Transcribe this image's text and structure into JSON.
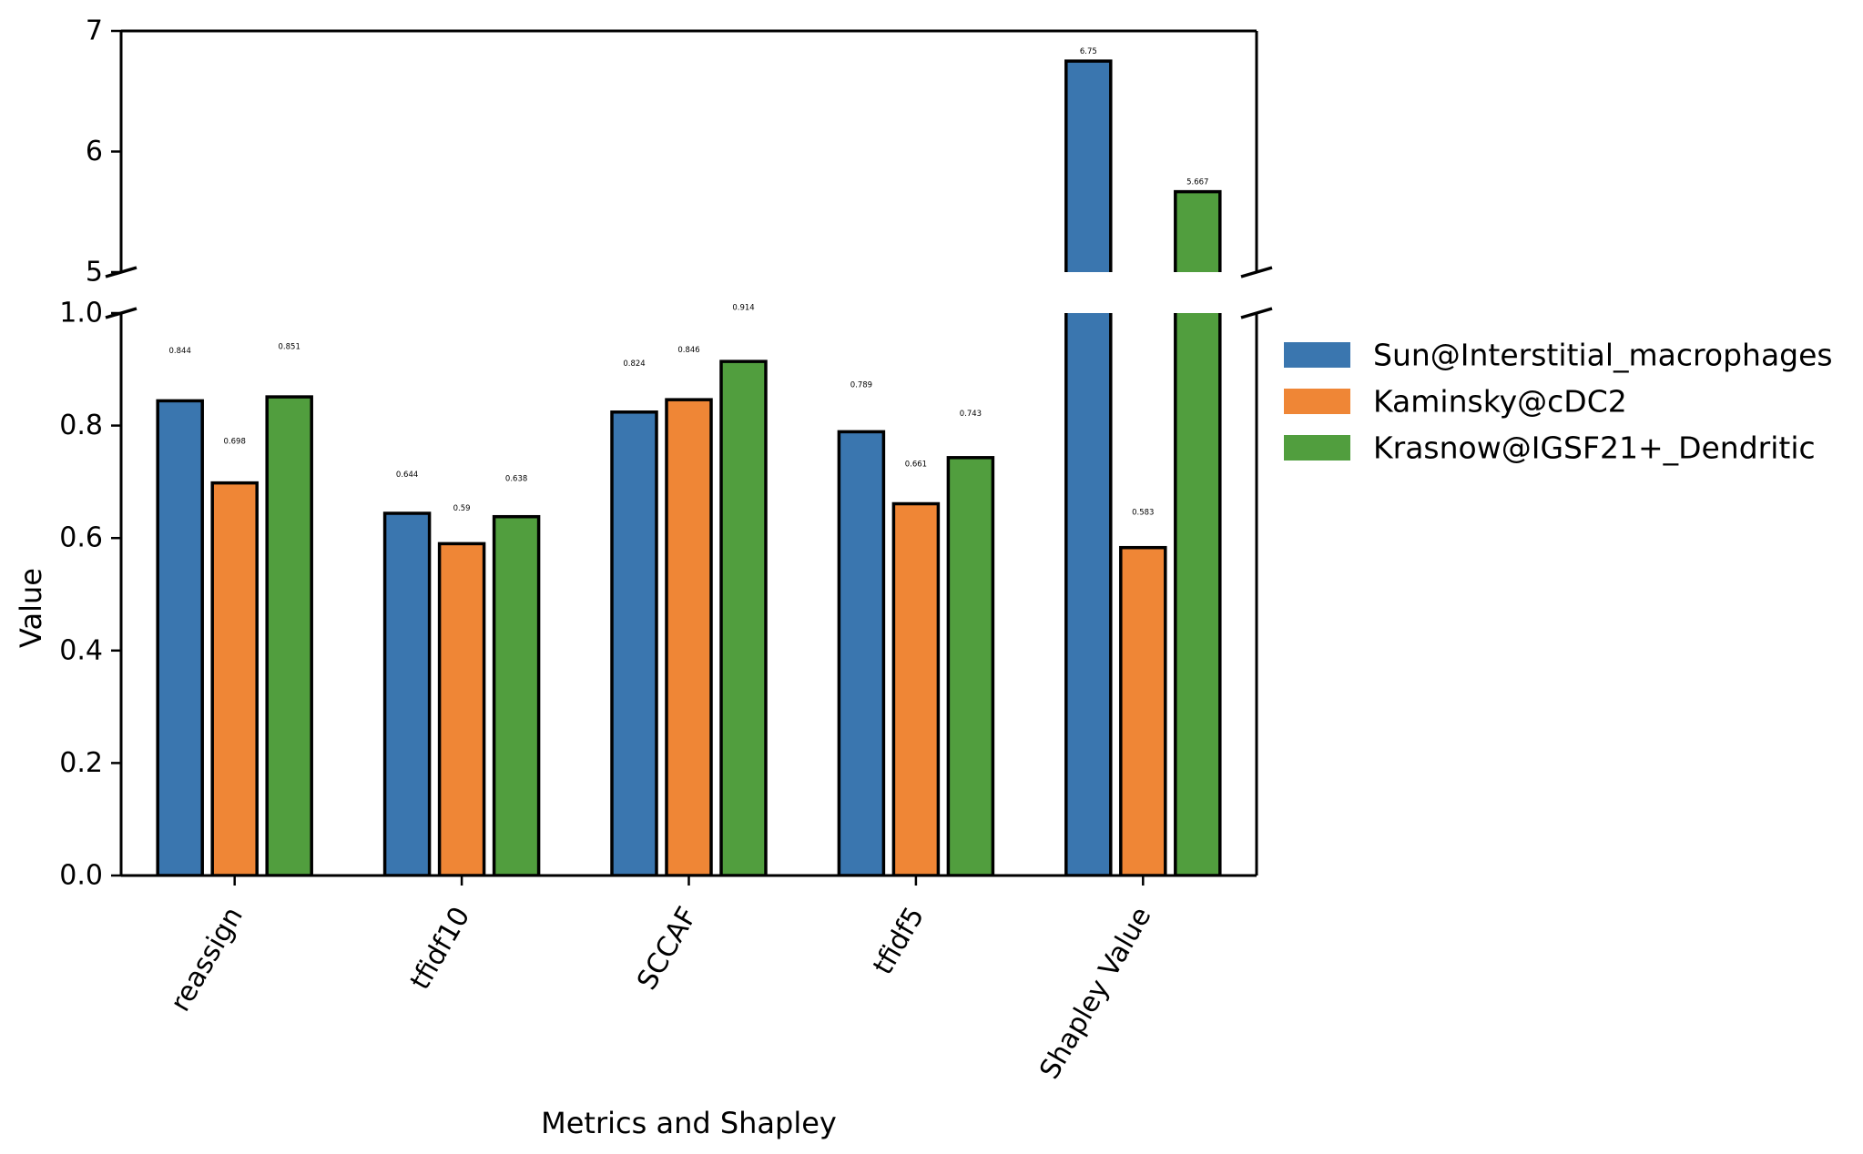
{
  "chart_data": {
    "type": "bar",
    "xlabel": "Metrics and Shapley",
    "ylabel": "Value",
    "categories": [
      "reassign",
      "tfidf10",
      "SCCAF",
      "tfidf5",
      "Shapley Value"
    ],
    "series": [
      {
        "name": "Sun@Interstitial_macrophages",
        "color": "#3a76af",
        "values": [
          0.844,
          0.644,
          0.824,
          0.789,
          6.75
        ],
        "labels": [
          "0.844",
          "0.644",
          "0.824",
          "0.789",
          "6.75"
        ]
      },
      {
        "name": "Kaminsky@cDC2",
        "color": "#ef8636",
        "values": [
          0.698,
          0.59,
          0.846,
          0.661,
          0.583
        ],
        "labels": [
          "0.698",
          "0.59",
          "0.846",
          "0.661",
          "0.583"
        ]
      },
      {
        "name": "Krasnow@IGSF21+_Dendritic",
        "color": "#519e3e",
        "values": [
          0.851,
          0.638,
          0.914,
          0.743,
          5.667
        ],
        "labels": [
          "0.851",
          "0.638",
          "0.914",
          "0.743",
          "5.667"
        ]
      }
    ],
    "broken_axis": true,
    "lower_ylim": [
      0,
      1.0
    ],
    "upper_ylim": [
      5,
      7
    ],
    "lower_yticks": [
      "0.0",
      "0.2",
      "0.4",
      "0.6",
      "0.8",
      "1.0"
    ],
    "upper_yticks": [
      "5",
      "6",
      "7"
    ],
    "x_tick_rotation_deg": 60,
    "grid": false,
    "legend_position": "right, outside"
  }
}
